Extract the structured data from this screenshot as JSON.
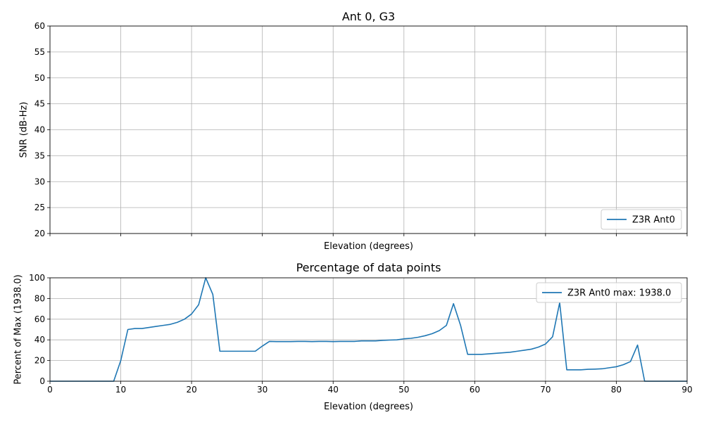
{
  "chart_data": [
    {
      "type": "line",
      "title": "Ant 0, G3",
      "xlabel": "Elevation (degrees)",
      "ylabel": "SNR (dB-Hz)",
      "xlim": [
        0,
        90
      ],
      "ylim": [
        20,
        60
      ],
      "yticks": [
        20,
        25,
        30,
        35,
        40,
        45,
        50,
        55,
        60
      ],
      "xticks": [
        0,
        10,
        20,
        30,
        40,
        50,
        60,
        70,
        80,
        90
      ],
      "show_xtick_labels": false,
      "grid": true,
      "legend_position": "lower-right",
      "series": [
        {
          "name": "Z3R Ant0",
          "color": "#1f77b4",
          "x": [],
          "y": []
        }
      ]
    },
    {
      "type": "line",
      "title": "Percentage of data points",
      "xlabel": "Elevation (degrees)",
      "ylabel": "Percent of Max (1938.0)",
      "xlim": [
        0,
        90
      ],
      "ylim": [
        0,
        100
      ],
      "yticks": [
        0,
        20,
        40,
        60,
        80,
        100
      ],
      "xticks": [
        0,
        10,
        20,
        30,
        40,
        50,
        60,
        70,
        80,
        90
      ],
      "show_xtick_labels": true,
      "grid": true,
      "legend_position": "upper-right",
      "series": [
        {
          "name": "Z3R Ant0 max: 1938.0",
          "color": "#1f77b4",
          "x": [
            0,
            1,
            2,
            3,
            4,
            5,
            6,
            7,
            8,
            9,
            10,
            11,
            12,
            13,
            14,
            15,
            16,
            17,
            18,
            19,
            20,
            21,
            22,
            23,
            24,
            25,
            26,
            27,
            28,
            29,
            30,
            31,
            32,
            33,
            34,
            35,
            36,
            37,
            38,
            39,
            40,
            41,
            42,
            43,
            44,
            45,
            46,
            47,
            48,
            49,
            50,
            51,
            52,
            53,
            54,
            55,
            56,
            57,
            58,
            59,
            60,
            61,
            62,
            63,
            64,
            65,
            66,
            67,
            68,
            69,
            70,
            71,
            72,
            73,
            74,
            75,
            76,
            77,
            78,
            79,
            80,
            81,
            82,
            83,
            84,
            85,
            86,
            87,
            88,
            89,
            90
          ],
          "y": [
            0,
            0,
            0,
            0,
            0,
            0,
            0,
            0,
            0,
            0,
            20,
            50,
            51,
            51,
            52,
            53,
            54,
            55,
            57,
            60,
            65,
            74,
            100,
            84,
            29,
            29,
            29,
            29,
            29,
            29,
            34,
            38.5,
            38.3,
            38.3,
            38.3,
            38.5,
            38.5,
            38.3,
            38.5,
            38.5,
            38.3,
            38.5,
            38.5,
            38.5,
            39,
            39,
            39,
            39.5,
            39.8,
            40,
            41,
            41.5,
            42.5,
            44,
            46,
            49,
            54,
            75,
            54,
            26,
            26,
            26,
            26.5,
            27,
            27.5,
            28,
            29,
            30,
            31,
            33,
            36,
            43,
            76,
            11,
            11,
            11,
            11.5,
            11.7,
            12,
            13,
            14,
            16,
            19,
            35,
            0,
            0,
            0,
            0,
            0,
            0,
            0
          ]
        }
      ]
    }
  ]
}
